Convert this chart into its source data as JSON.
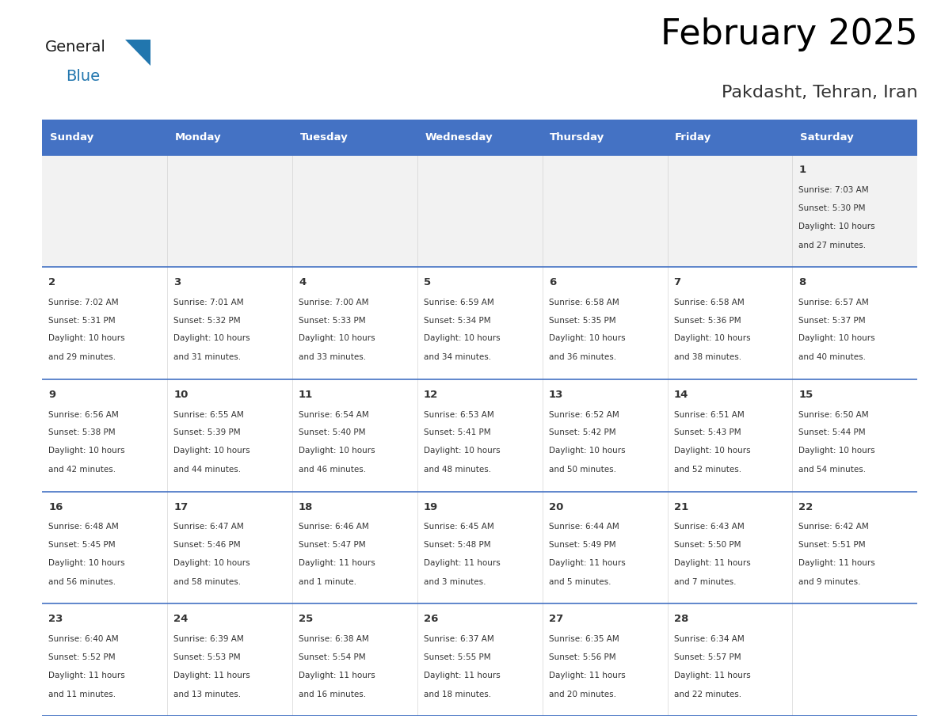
{
  "title": "February 2025",
  "subtitle": "Pakdasht, Tehran, Iran",
  "header_bg": "#4472C4",
  "header_text_color": "#FFFFFF",
  "cell_bg": "#FFFFFF",
  "cell_bg_first": "#F2F2F2",
  "cell_border_color": "#4472C4",
  "text_color": "#333333",
  "days_of_week": [
    "Sunday",
    "Monday",
    "Tuesday",
    "Wednesday",
    "Thursday",
    "Friday",
    "Saturday"
  ],
  "logo_general_color": "#1a1a1a",
  "logo_blue_color": "#2176AE",
  "logo_triangle_color": "#2176AE",
  "weeks": [
    [
      {
        "day": null,
        "sunrise": null,
        "sunset": null,
        "daylight": null
      },
      {
        "day": null,
        "sunrise": null,
        "sunset": null,
        "daylight": null
      },
      {
        "day": null,
        "sunrise": null,
        "sunset": null,
        "daylight": null
      },
      {
        "day": null,
        "sunrise": null,
        "sunset": null,
        "daylight": null
      },
      {
        "day": null,
        "sunrise": null,
        "sunset": null,
        "daylight": null
      },
      {
        "day": null,
        "sunrise": null,
        "sunset": null,
        "daylight": null
      },
      {
        "day": 1,
        "sunrise": "7:03 AM",
        "sunset": "5:30 PM",
        "daylight": "10 hours\nand 27 minutes."
      }
    ],
    [
      {
        "day": 2,
        "sunrise": "7:02 AM",
        "sunset": "5:31 PM",
        "daylight": "10 hours\nand 29 minutes."
      },
      {
        "day": 3,
        "sunrise": "7:01 AM",
        "sunset": "5:32 PM",
        "daylight": "10 hours\nand 31 minutes."
      },
      {
        "day": 4,
        "sunrise": "7:00 AM",
        "sunset": "5:33 PM",
        "daylight": "10 hours\nand 33 minutes."
      },
      {
        "day": 5,
        "sunrise": "6:59 AM",
        "sunset": "5:34 PM",
        "daylight": "10 hours\nand 34 minutes."
      },
      {
        "day": 6,
        "sunrise": "6:58 AM",
        "sunset": "5:35 PM",
        "daylight": "10 hours\nand 36 minutes."
      },
      {
        "day": 7,
        "sunrise": "6:58 AM",
        "sunset": "5:36 PM",
        "daylight": "10 hours\nand 38 minutes."
      },
      {
        "day": 8,
        "sunrise": "6:57 AM",
        "sunset": "5:37 PM",
        "daylight": "10 hours\nand 40 minutes."
      }
    ],
    [
      {
        "day": 9,
        "sunrise": "6:56 AM",
        "sunset": "5:38 PM",
        "daylight": "10 hours\nand 42 minutes."
      },
      {
        "day": 10,
        "sunrise": "6:55 AM",
        "sunset": "5:39 PM",
        "daylight": "10 hours\nand 44 minutes."
      },
      {
        "day": 11,
        "sunrise": "6:54 AM",
        "sunset": "5:40 PM",
        "daylight": "10 hours\nand 46 minutes."
      },
      {
        "day": 12,
        "sunrise": "6:53 AM",
        "sunset": "5:41 PM",
        "daylight": "10 hours\nand 48 minutes."
      },
      {
        "day": 13,
        "sunrise": "6:52 AM",
        "sunset": "5:42 PM",
        "daylight": "10 hours\nand 50 minutes."
      },
      {
        "day": 14,
        "sunrise": "6:51 AM",
        "sunset": "5:43 PM",
        "daylight": "10 hours\nand 52 minutes."
      },
      {
        "day": 15,
        "sunrise": "6:50 AM",
        "sunset": "5:44 PM",
        "daylight": "10 hours\nand 54 minutes."
      }
    ],
    [
      {
        "day": 16,
        "sunrise": "6:48 AM",
        "sunset": "5:45 PM",
        "daylight": "10 hours\nand 56 minutes."
      },
      {
        "day": 17,
        "sunrise": "6:47 AM",
        "sunset": "5:46 PM",
        "daylight": "10 hours\nand 58 minutes."
      },
      {
        "day": 18,
        "sunrise": "6:46 AM",
        "sunset": "5:47 PM",
        "daylight": "11 hours\nand 1 minute."
      },
      {
        "day": 19,
        "sunrise": "6:45 AM",
        "sunset": "5:48 PM",
        "daylight": "11 hours\nand 3 minutes."
      },
      {
        "day": 20,
        "sunrise": "6:44 AM",
        "sunset": "5:49 PM",
        "daylight": "11 hours\nand 5 minutes."
      },
      {
        "day": 21,
        "sunrise": "6:43 AM",
        "sunset": "5:50 PM",
        "daylight": "11 hours\nand 7 minutes."
      },
      {
        "day": 22,
        "sunrise": "6:42 AM",
        "sunset": "5:51 PM",
        "daylight": "11 hours\nand 9 minutes."
      }
    ],
    [
      {
        "day": 23,
        "sunrise": "6:40 AM",
        "sunset": "5:52 PM",
        "daylight": "11 hours\nand 11 minutes."
      },
      {
        "day": 24,
        "sunrise": "6:39 AM",
        "sunset": "5:53 PM",
        "daylight": "11 hours\nand 13 minutes."
      },
      {
        "day": 25,
        "sunrise": "6:38 AM",
        "sunset": "5:54 PM",
        "daylight": "11 hours\nand 16 minutes."
      },
      {
        "day": 26,
        "sunrise": "6:37 AM",
        "sunset": "5:55 PM",
        "daylight": "11 hours\nand 18 minutes."
      },
      {
        "day": 27,
        "sunrise": "6:35 AM",
        "sunset": "5:56 PM",
        "daylight": "11 hours\nand 20 minutes."
      },
      {
        "day": 28,
        "sunrise": "6:34 AM",
        "sunset": "5:57 PM",
        "daylight": "11 hours\nand 22 minutes."
      },
      {
        "day": null,
        "sunrise": null,
        "sunset": null,
        "daylight": null
      }
    ]
  ]
}
